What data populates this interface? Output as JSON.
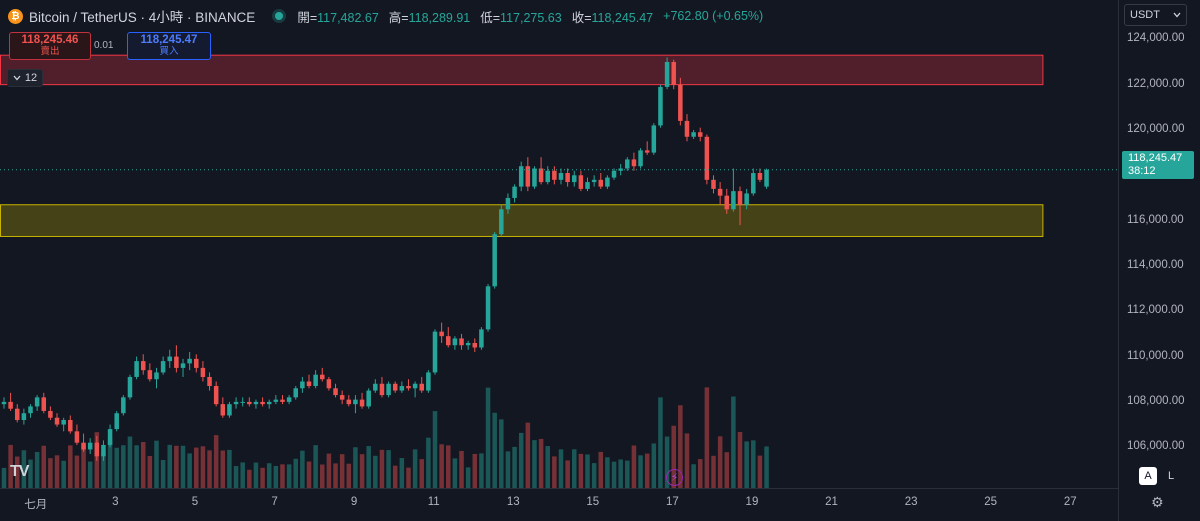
{
  "header": {
    "symbol_title": "Bitcoin / TetherUS · 4小時 · BINANCE",
    "coin_glyph": "₿",
    "ohlc": [
      {
        "label": "開=",
        "value": "117,482.67"
      },
      {
        "label": "高=",
        "value": "118,289.91"
      },
      {
        "label": "低=",
        "value": "117,275.63"
      },
      {
        "label": "收=",
        "value": "118,245.47"
      }
    ],
    "change": "+762.80 (+0.65%)"
  },
  "trade": {
    "sell_price": "118,245.46",
    "sell_label": "賣出",
    "spread": "0.01",
    "buy_price": "118,245.47",
    "buy_label": "買入"
  },
  "indicator_toggle": {
    "label": "12"
  },
  "currency": {
    "label": "USDT"
  },
  "last_price": {
    "value": "118,245.47",
    "countdown": "38:12"
  },
  "logo_text": "TV",
  "buttons": {
    "auto": "A",
    "log": "L"
  },
  "colors": {
    "up": "#26a69a",
    "down": "#ef5350",
    "resistance_zone": "#f23645",
    "support_zone": "#c8b400",
    "background": "#131722"
  },
  "chart_data": {
    "type": "candlestick",
    "title": "Bitcoin / TetherUS · 4小時 · BINANCE",
    "x_tick_labels": [
      "七月",
      "3",
      "5",
      "7",
      "9",
      "11",
      "13",
      "15",
      "17",
      "19",
      "21",
      "23",
      "25",
      "27"
    ],
    "x_tick_days": [
      1,
      3,
      5,
      7,
      9,
      11,
      13,
      15,
      17,
      19,
      21,
      23,
      25,
      27
    ],
    "y_tick_labels": [
      "124,000.00",
      "122,000.00",
      "120,000.00",
      "116,000.00",
      "114,000.00",
      "112,000.00",
      "110,000.00",
      "108,000.00",
      "106,000.00"
    ],
    "y_tick_values": [
      124000,
      122000,
      120000,
      116000,
      114000,
      112000,
      110000,
      108000,
      106000
    ],
    "ylim": [
      104200,
      124500
    ],
    "xlim_days": [
      0.1,
      28.2
    ],
    "zones": [
      {
        "name": "resistance",
        "from": 122000,
        "to": 123300,
        "x_end_day": 26.3
      },
      {
        "name": "support",
        "from": 115300,
        "to": 116700,
        "x_end_day": 26.3
      }
    ],
    "last_price": 118245.47,
    "bar_period_hours": 4,
    "start_day": 0.2,
    "candles_ohlc": [
      [
        107900,
        108200,
        107700,
        108000
      ],
      [
        108000,
        108400,
        107600,
        107700
      ],
      [
        107700,
        107900,
        107100,
        107200
      ],
      [
        107200,
        107700,
        107000,
        107500
      ],
      [
        107500,
        107900,
        107300,
        107800
      ],
      [
        107800,
        108300,
        107600,
        108200
      ],
      [
        108200,
        108400,
        107500,
        107600
      ],
      [
        107600,
        107800,
        107200,
        107300
      ],
      [
        107300,
        107500,
        106900,
        107000
      ],
      [
        107000,
        107300,
        106700,
        107200
      ],
      [
        107200,
        107400,
        106600,
        106700
      ],
      [
        106700,
        107000,
        106100,
        106200
      ],
      [
        106200,
        106600,
        105800,
        105900
      ],
      [
        105900,
        106400,
        105700,
        106200
      ],
      [
        106200,
        106500,
        105400,
        105600
      ],
      [
        105600,
        106300,
        105400,
        106100
      ],
      [
        106100,
        107000,
        106000,
        106800
      ],
      [
        106800,
        107600,
        106700,
        107500
      ],
      [
        107500,
        108300,
        107400,
        108200
      ],
      [
        108200,
        109200,
        108100,
        109100
      ],
      [
        109100,
        110000,
        109000,
        109800
      ],
      [
        109800,
        110100,
        109200,
        109400
      ],
      [
        109400,
        109700,
        108900,
        109000
      ],
      [
        109000,
        109500,
        108600,
        109300
      ],
      [
        109300,
        110000,
        109200,
        109800
      ],
      [
        109800,
        110300,
        109500,
        110000
      ],
      [
        110000,
        110500,
        109300,
        109500
      ],
      [
        109500,
        109900,
        109100,
        109700
      ],
      [
        109700,
        110200,
        109400,
        109900
      ],
      [
        109900,
        110100,
        109300,
        109500
      ],
      [
        109500,
        109800,
        108900,
        109100
      ],
      [
        109100,
        109300,
        108500,
        108700
      ],
      [
        108700,
        108900,
        107800,
        107900
      ],
      [
        107900,
        108200,
        107300,
        107400
      ],
      [
        107400,
        108000,
        107300,
        107900
      ],
      [
        107900,
        108200,
        107700,
        108000
      ],
      [
        108000,
        108200,
        107800,
        108000
      ],
      [
        108000,
        108200,
        107800,
        107900
      ],
      [
        107900,
        108100,
        107700,
        108000
      ],
      [
        108000,
        108200,
        107800,
        107900
      ],
      [
        107900,
        108100,
        107700,
        108000
      ],
      [
        108000,
        108300,
        107900,
        108100
      ],
      [
        108100,
        108300,
        107900,
        108000
      ],
      [
        108000,
        108300,
        107900,
        108200
      ],
      [
        108200,
        108700,
        108100,
        108600
      ],
      [
        108600,
        109100,
        108400,
        108900
      ],
      [
        108900,
        109200,
        108600,
        108700
      ],
      [
        108700,
        109400,
        108600,
        109200
      ],
      [
        109200,
        109500,
        108900,
        109000
      ],
      [
        109000,
        109100,
        108500,
        108600
      ],
      [
        108600,
        108800,
        108200,
        108300
      ],
      [
        108300,
        108500,
        107900,
        108100
      ],
      [
        108100,
        108300,
        107800,
        107900
      ],
      [
        107900,
        108300,
        107500,
        108100
      ],
      [
        108100,
        108400,
        107700,
        107800
      ],
      [
        107800,
        108600,
        107700,
        108500
      ],
      [
        108500,
        109000,
        108400,
        108800
      ],
      [
        108800,
        109100,
        108200,
        108300
      ],
      [
        108300,
        108900,
        108200,
        108800
      ],
      [
        108800,
        108900,
        108400,
        108500
      ],
      [
        108500,
        108900,
        108400,
        108700
      ],
      [
        108700,
        109000,
        108500,
        108600
      ],
      [
        108600,
        108900,
        108200,
        108800
      ],
      [
        108800,
        109100,
        108400,
        108500
      ],
      [
        108500,
        109400,
        108400,
        109300
      ],
      [
        109300,
        111200,
        109200,
        111100
      ],
      [
        111100,
        111500,
        110600,
        110900
      ],
      [
        110900,
        111300,
        110400,
        110500
      ],
      [
        110500,
        110900,
        110300,
        110800
      ],
      [
        110800,
        111000,
        110300,
        110500
      ],
      [
        110500,
        110700,
        110300,
        110600
      ],
      [
        110600,
        110800,
        110200,
        110400
      ],
      [
        110400,
        111300,
        110300,
        111200
      ],
      [
        111200,
        113200,
        111100,
        113100
      ],
      [
        113100,
        115500,
        113000,
        115400
      ],
      [
        115400,
        116700,
        115300,
        116500
      ],
      [
        116500,
        117200,
        116300,
        117000
      ],
      [
        117000,
        117600,
        116800,
        117500
      ],
      [
        117500,
        118600,
        117300,
        118400
      ],
      [
        118400,
        118800,
        117300,
        117500
      ],
      [
        117500,
        118400,
        117400,
        118300
      ],
      [
        118300,
        118800,
        117600,
        117700
      ],
      [
        117700,
        118400,
        117600,
        118200
      ],
      [
        118200,
        118400,
        117600,
        117800
      ],
      [
        117800,
        118300,
        117600,
        118100
      ],
      [
        118100,
        118300,
        117500,
        117700
      ],
      [
        117700,
        118200,
        117500,
        118000
      ],
      [
        118000,
        118200,
        117300,
        117400
      ],
      [
        117400,
        117900,
        117300,
        117700
      ],
      [
        117700,
        118000,
        117500,
        117800
      ],
      [
        117800,
        118100,
        117400,
        117500
      ],
      [
        117500,
        118000,
        117400,
        117900
      ],
      [
        117900,
        118300,
        117800,
        118200
      ],
      [
        118200,
        118500,
        118000,
        118300
      ],
      [
        118300,
        118800,
        118200,
        118700
      ],
      [
        118700,
        119000,
        118200,
        118400
      ],
      [
        118400,
        119200,
        118300,
        119100
      ],
      [
        119100,
        119500,
        118900,
        119000
      ],
      [
        119000,
        120300,
        118900,
        120200
      ],
      [
        120200,
        122000,
        120100,
        121900
      ],
      [
        121900,
        123200,
        121800,
        123000
      ],
      [
        123000,
        123100,
        121800,
        122000
      ],
      [
        122000,
        122300,
        120200,
        120400
      ],
      [
        120400,
        120700,
        119500,
        119700
      ],
      [
        119700,
        120000,
        119600,
        119900
      ],
      [
        119900,
        120100,
        119500,
        119700
      ],
      [
        119700,
        119800,
        117600,
        117800
      ],
      [
        117800,
        118000,
        117200,
        117400
      ],
      [
        117400,
        117700,
        116700,
        117100
      ],
      [
        117100,
        117400,
        116300,
        116500
      ],
      [
        116500,
        118300,
        116400,
        117300
      ],
      [
        117300,
        117500,
        115800,
        116700
      ],
      [
        116700,
        117400,
        116500,
        117200
      ],
      [
        117200,
        118300,
        117100,
        118100
      ],
      [
        118100,
        118300,
        117700,
        117800
      ],
      [
        117500,
        118300,
        117400,
        118245
      ]
    ],
    "volume_range": [
      0,
      100
    ]
  }
}
